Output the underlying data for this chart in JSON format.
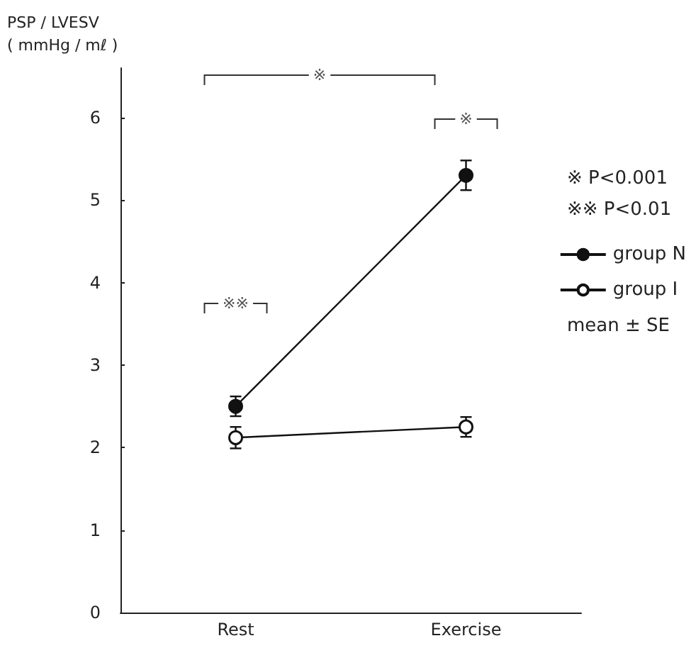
{
  "chart_data": {
    "type": "line",
    "ylabel": "PSP / LVESV\n( mmHg / mℓ )",
    "categories": [
      "Rest",
      "Exercise"
    ],
    "series": [
      {
        "name": "group N",
        "color": "#111111",
        "marker": "circle",
        "values": [
          2.5,
          5.3
        ],
        "errors": [
          0.12,
          0.18
        ]
      },
      {
        "name": "group I",
        "color": "#111111",
        "marker": "circle",
        "values": [
          2.12,
          2.25
        ],
        "errors": [
          0.13,
          0.12
        ]
      }
    ],
    "ylim": [
      0,
      6.6
    ],
    "yticks": [
      0,
      1,
      2,
      3,
      4,
      5,
      6
    ],
    "grid": false,
    "legend": "right",
    "line_style": "solid",
    "annotations": [
      "※",
      "※",
      "※※",
      "※ P<0.001",
      "※※ P<0.01",
      "mean ± SE"
    ]
  }
}
